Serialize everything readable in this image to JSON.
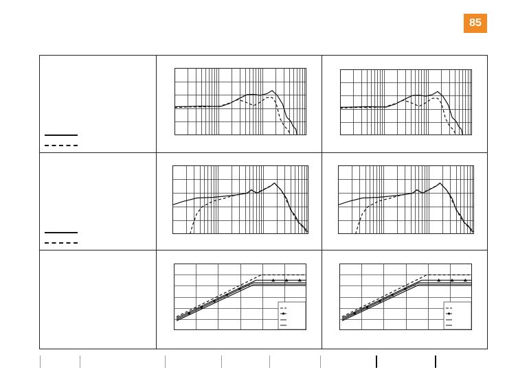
{
  "page": {
    "number": "85",
    "accent": "#f08a24"
  },
  "chart_data": [
    {
      "type": "line",
      "panel": "row1-col1",
      "grid": "log-x",
      "series": [
        {
          "style": "solid"
        },
        {
          "style": "dashed"
        }
      ]
    },
    {
      "type": "line",
      "panel": "row1-col2",
      "grid": "log-x",
      "series": [
        {
          "style": "solid"
        },
        {
          "style": "dashed"
        }
      ]
    },
    {
      "type": "line",
      "panel": "row2-col1",
      "grid": "log-x",
      "series": [
        {
          "style": "solid"
        },
        {
          "style": "dashed"
        }
      ]
    },
    {
      "type": "line",
      "panel": "row2-col2",
      "grid": "log-x",
      "series": [
        {
          "style": "solid"
        },
        {
          "style": "dashed"
        }
      ]
    },
    {
      "type": "line",
      "panel": "row3-col1",
      "grid": "linear",
      "legend": "bottom-right",
      "series": [
        {
          "style": "dashed"
        },
        {
          "style": "solid-triangle"
        },
        {
          "style": "solid-dot"
        },
        {
          "style": "solid"
        }
      ]
    },
    {
      "type": "line",
      "panel": "row3-col2",
      "grid": "linear",
      "legend": "bottom-right",
      "series": [
        {
          "style": "dashed"
        },
        {
          "style": "solid-triangle"
        },
        {
          "style": "solid-dot"
        },
        {
          "style": "solid"
        }
      ]
    }
  ]
}
